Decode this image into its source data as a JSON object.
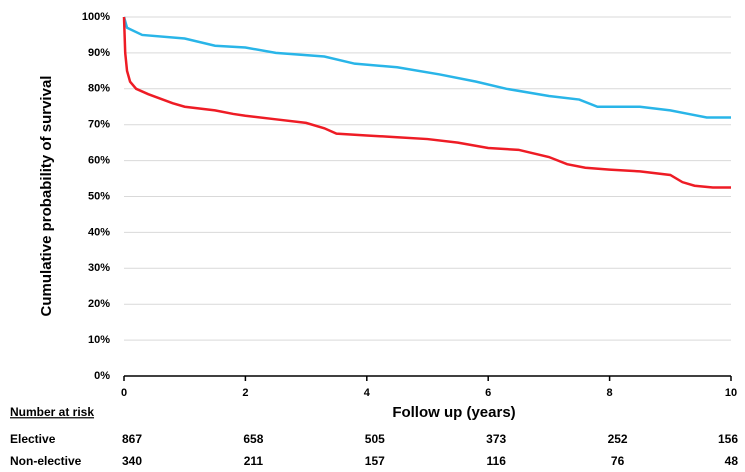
{
  "chart_data": {
    "type": "line",
    "x_label": "Follow up (years)",
    "y_label": "Cumulative probability of survival",
    "xlim": [
      0,
      10
    ],
    "xticks": [
      0,
      2,
      4,
      6,
      8,
      10
    ],
    "ylim": [
      0,
      100
    ],
    "yticks": [
      {
        "value": 0,
        "label": "0%"
      },
      {
        "value": 10,
        "label": "10%"
      },
      {
        "value": 20,
        "label": "20%"
      },
      {
        "value": 30,
        "label": "30%"
      },
      {
        "value": 40,
        "label": "40%"
      },
      {
        "value": 50,
        "label": "50%"
      },
      {
        "value": 60,
        "label": "60%"
      },
      {
        "value": 70,
        "label": "70%"
      },
      {
        "value": 80,
        "label": "80%"
      },
      {
        "value": 90,
        "label": "90%"
      },
      {
        "value": 100,
        "label": "100%"
      }
    ],
    "grid": true,
    "risk_title": "Number at risk",
    "series": [
      {
        "name": "Elective",
        "color": "#29b5e8",
        "x": [
          0,
          0.05,
          0.3,
          1,
          1.5,
          2,
          2.5,
          3.3,
          3.8,
          4.5,
          5.2,
          5.8,
          6.3,
          7,
          7.5,
          7.8,
          8.5,
          9,
          9.3,
          9.6,
          10
        ],
        "values": [
          100,
          97,
          95,
          94,
          92,
          91.5,
          90,
          89,
          87,
          86,
          84,
          82,
          80,
          78,
          77,
          75,
          75,
          74,
          73,
          72,
          72
        ],
        "at_risk": [
          867,
          658,
          505,
          373,
          252,
          156
        ]
      },
      {
        "name": "Non-elective",
        "color": "#ee1c25",
        "x": [
          0,
          0.02,
          0.05,
          0.1,
          0.2,
          0.4,
          0.8,
          1,
          1.5,
          1.8,
          2,
          2.5,
          3,
          3.3,
          3.5,
          4,
          4.5,
          5,
          5.5,
          6,
          6.5,
          7,
          7.3,
          7.6,
          8,
          8.5,
          9,
          9.2,
          9.4,
          9.7,
          10
        ],
        "values": [
          100,
          90,
          85,
          82,
          80,
          78.5,
          76,
          75,
          74,
          73,
          72.5,
          71.5,
          70.5,
          69,
          67.5,
          67,
          66.5,
          66,
          65,
          63.5,
          63,
          61,
          59,
          58,
          57.5,
          57,
          56,
          54,
          53,
          52.5,
          52.5
        ],
        "at_risk": [
          340,
          211,
          157,
          116,
          76,
          48
        ]
      }
    ]
  }
}
